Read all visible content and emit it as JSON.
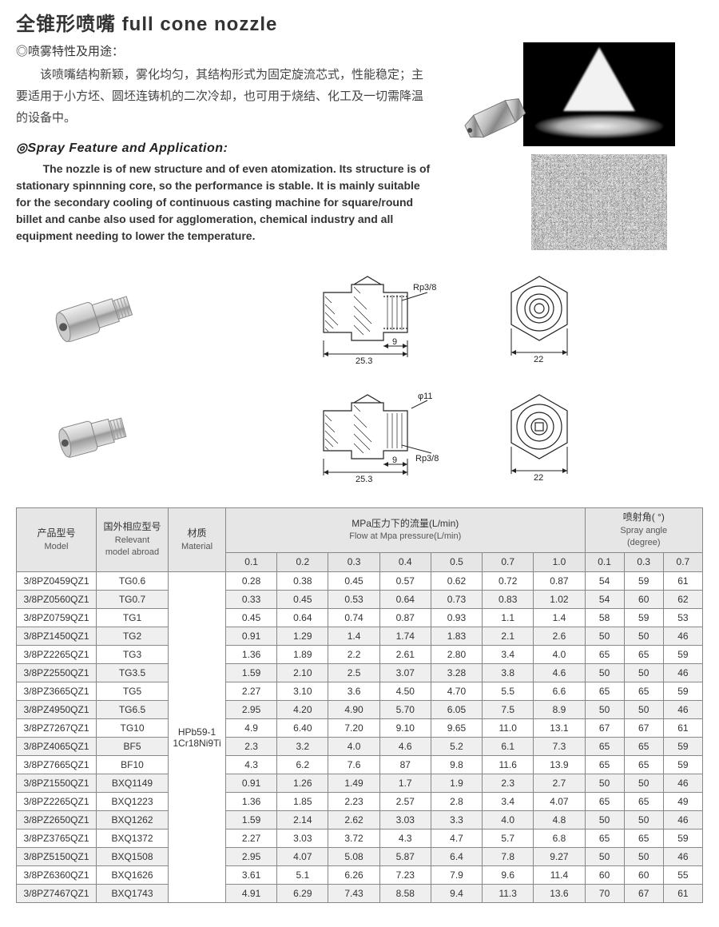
{
  "title": "全锥形喷嘴 full cone nozzle",
  "heading_cn": "◎喷雾特性及用途：",
  "body_cn": "该喷嘴结构新颖，雾化均匀，其结构形式为固定旋流芯式，性能稳定；主要适用于小方坯、圆坯连铸机的二次冷却，也可用于烧结、化工及一切需降温的设备中。",
  "heading_en": "◎Spray Feature and Application:",
  "body_en": "The nozzle is of new structure and of even atomization. Its structure is of stationary spinnning core, so the performance is stable. It is mainly suitable for the secondary cooling of continuous casting machine for square/round billet and canbe also used for agglomeration, chemical industry and all equipment needing to lower the temperature.",
  "diagrams": {
    "thread_label": "Rp3/8",
    "dim_25_3": "25.3",
    "dim_9": "9",
    "dim_22": "22",
    "dia_11": "φ11"
  },
  "table": {
    "headers": {
      "model_cn": "产品型号",
      "model_en": "Model",
      "relevant_cn": "国外相应型号",
      "relevant_en1": "Relevant",
      "relevant_en2": "model abroad",
      "material_cn": "材质",
      "material_en": "Material",
      "flow_title_cn": "MPa压力下的流量(L/min)",
      "flow_title_en": "Flow at Mpa pressure(L/min)",
      "angle_title_cn": "喷射角( °)",
      "angle_title_en1": "Spray angle",
      "angle_title_en2": "(degree)",
      "p01": "0.1",
      "p02": "0.2",
      "p03": "0.3",
      "p04": "0.4",
      "p05": "0.5",
      "p07": "0.7",
      "p10": "1.0",
      "a01": "0.1",
      "a03": "0.3",
      "a07": "0.7"
    },
    "material": "HPb59-1\n1Cr18Ni9Ti",
    "rows": [
      {
        "model": "3/8PZ0459QZ1",
        "rel": "TG0.6",
        "f": [
          "0.28",
          "0.38",
          "0.45",
          "0.57",
          "0.62",
          "0.72",
          "0.87"
        ],
        "a": [
          "54",
          "59",
          "61"
        ]
      },
      {
        "model": "3/8PZ0560QZ1",
        "rel": "TG0.7",
        "f": [
          "0.33",
          "0.45",
          "0.53",
          "0.64",
          "0.73",
          "0.83",
          "1.02"
        ],
        "a": [
          "54",
          "60",
          "62"
        ]
      },
      {
        "model": "3/8PZ0759QZ1",
        "rel": "TG1",
        "f": [
          "0.45",
          "0.64",
          "0.74",
          "0.87",
          "0.93",
          "1.1",
          "1.4"
        ],
        "a": [
          "58",
          "59",
          "53"
        ]
      },
      {
        "model": "3/8PZ1450QZ1",
        "rel": "TG2",
        "f": [
          "0.91",
          "1.29",
          "1.4",
          "1.74",
          "1.83",
          "2.1",
          "2.6"
        ],
        "a": [
          "50",
          "50",
          "46"
        ]
      },
      {
        "model": "3/8PZ2265QZ1",
        "rel": "TG3",
        "f": [
          "1.36",
          "1.89",
          "2.2",
          "2.61",
          "2.80",
          "3.4",
          "4.0"
        ],
        "a": [
          "65",
          "65",
          "59"
        ]
      },
      {
        "model": "3/8PZ2550QZ1",
        "rel": "TG3.5",
        "f": [
          "1.59",
          "2.10",
          "2.5",
          "3.07",
          "3.28",
          "3.8",
          "4.6"
        ],
        "a": [
          "50",
          "50",
          "46"
        ]
      },
      {
        "model": "3/8PZ3665QZ1",
        "rel": "TG5",
        "f": [
          "2.27",
          "3.10",
          "3.6",
          "4.50",
          "4.70",
          "5.5",
          "6.6"
        ],
        "a": [
          "65",
          "65",
          "59"
        ]
      },
      {
        "model": "3/8PZ4950QZ1",
        "rel": "TG6.5",
        "f": [
          "2.95",
          "4.20",
          "4.90",
          "5.70",
          "6.05",
          "7.5",
          "8.9"
        ],
        "a": [
          "50",
          "50",
          "46"
        ]
      },
      {
        "model": "3/8PZ7267QZ1",
        "rel": "TG10",
        "f": [
          "4.9",
          "6.40",
          "7.20",
          "9.10",
          "9.65",
          "11.0",
          "13.1"
        ],
        "a": [
          "67",
          "67",
          "61"
        ]
      },
      {
        "model": "3/8PZ4065QZ1",
        "rel": "BF5",
        "f": [
          "2.3",
          "3.2",
          "4.0",
          "4.6",
          "5.2",
          "6.1",
          "7.3"
        ],
        "a": [
          "65",
          "65",
          "59"
        ]
      },
      {
        "model": "3/8PZ7665QZ1",
        "rel": "BF10",
        "f": [
          "4.3",
          "6.2",
          "7.6",
          "87",
          "9.8",
          "11.6",
          "13.9"
        ],
        "a": [
          "65",
          "65",
          "59"
        ]
      },
      {
        "model": "3/8PZ1550QZ1",
        "rel": "BXQ1149",
        "f": [
          "0.91",
          "1.26",
          "1.49",
          "1.7",
          "1.9",
          "2.3",
          "2.7"
        ],
        "a": [
          "50",
          "50",
          "46"
        ]
      },
      {
        "model": "3/8PZ2265QZ1",
        "rel": "BXQ1223",
        "f": [
          "1.36",
          "1.85",
          "2.23",
          "2.57",
          "2.8",
          "3.4",
          "4.07"
        ],
        "a": [
          "65",
          "65",
          "49"
        ]
      },
      {
        "model": "3/8PZ2650QZ1",
        "rel": "BXQ1262",
        "f": [
          "1.59",
          "2.14",
          "2.62",
          "3.03",
          "3.3",
          "4.0",
          "4.8"
        ],
        "a": [
          "50",
          "50",
          "46"
        ]
      },
      {
        "model": "3/8PZ3765QZ1",
        "rel": "BXQ1372",
        "f": [
          "2.27",
          "3.03",
          "3.72",
          "4.3",
          "4.7",
          "5.7",
          "6.8"
        ],
        "a": [
          "65",
          "65",
          "59"
        ]
      },
      {
        "model": "3/8PZ5150QZ1",
        "rel": "BXQ1508",
        "f": [
          "2.95",
          "4.07",
          "5.08",
          "5.87",
          "6.4",
          "7.8",
          "9.27"
        ],
        "a": [
          "50",
          "50",
          "46"
        ]
      },
      {
        "model": "3/8PZ6360QZ1",
        "rel": "BXQ1626",
        "f": [
          "3.61",
          "5.1",
          "6.26",
          "7.23",
          "7.9",
          "9.6",
          "11.4"
        ],
        "a": [
          "60",
          "60",
          "55"
        ]
      },
      {
        "model": "3/8PZ7467QZ1",
        "rel": "BXQ1743",
        "f": [
          "4.91",
          "6.29",
          "7.43",
          "8.58",
          "9.4",
          "11.3",
          "13.6"
        ],
        "a": [
          "70",
          "67",
          "61"
        ]
      }
    ]
  },
  "colors": {
    "border": "#888888",
    "header_bg": "#e6e6e6",
    "row_alt_bg": "#efefef",
    "text": "#333333"
  }
}
